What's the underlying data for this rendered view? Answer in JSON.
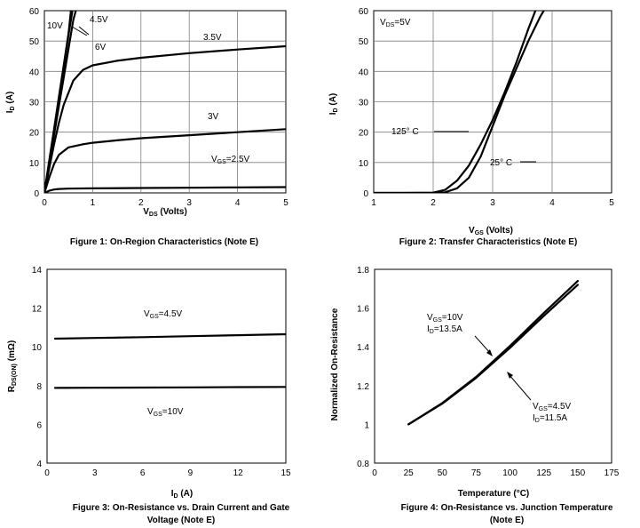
{
  "chart_data": [
    {
      "type": "line",
      "caption": "Figure 1: On-Region Characteristics (Note E)",
      "xlabel_main": "V",
      "xlabel_sub": "DS",
      "xlabel_rest": " (Volts)",
      "ylabel_main": "I",
      "ylabel_sub": "D",
      "ylabel_rest": " (A)",
      "xlim": [
        0,
        5
      ],
      "ylim": [
        0,
        60
      ],
      "xticks": [
        "0",
        "1",
        "2",
        "3",
        "4",
        "5"
      ],
      "yticks": [
        "0",
        "10",
        "20",
        "30",
        "40",
        "50",
        "60"
      ],
      "grid": true,
      "series": [
        {
          "name": "10V",
          "x": [
            0,
            0.1,
            0.2,
            0.3,
            0.4,
            0.5,
            0.55
          ],
          "y": [
            0,
            10.5,
            21,
            31.5,
            42,
            52.5,
            60
          ]
        },
        {
          "name": "4.5V",
          "x": [
            0,
            0.1,
            0.2,
            0.3,
            0.4,
            0.5,
            0.58
          ],
          "y": [
            0,
            10,
            20.5,
            31,
            41.5,
            52,
            60
          ]
        },
        {
          "name": "6V",
          "x": [
            0,
            0.1,
            0.2,
            0.3,
            0.4,
            0.5,
            0.6,
            0.65
          ],
          "y": [
            0,
            9.5,
            19,
            28.5,
            38,
            47.5,
            57,
            60
          ]
        },
        {
          "name": "3.5V",
          "x": [
            0,
            0.1,
            0.2,
            0.3,
            0.4,
            0.6,
            0.8,
            1.0,
            1.5,
            2,
            3,
            4,
            5
          ],
          "y": [
            0,
            8,
            16,
            23,
            29,
            37,
            40.5,
            42,
            43.5,
            44.5,
            46,
            47.2,
            48.3
          ]
        },
        {
          "name": "3V",
          "x": [
            0,
            0.1,
            0.2,
            0.3,
            0.5,
            0.8,
            1,
            1.5,
            2,
            3,
            4,
            5
          ],
          "y": [
            0,
            5,
            9.5,
            12.5,
            15,
            16,
            16.5,
            17.3,
            18,
            19,
            20,
            21
          ]
        },
        {
          "name": "VGS=2.5V",
          "x": [
            0,
            0.1,
            0.2,
            0.3,
            0.5,
            1,
            2,
            3,
            4,
            5
          ],
          "y": [
            0,
            0.7,
            1.1,
            1.3,
            1.4,
            1.5,
            1.6,
            1.7,
            1.8,
            1.9
          ]
        }
      ],
      "annotations": [
        {
          "text": "10V"
        },
        {
          "text": "4.5V"
        },
        {
          "text": "6V"
        },
        {
          "text": "3.5V"
        },
        {
          "text": "3V"
        },
        {
          "main": "V",
          "sub": "GS",
          "rest": "=2.5V"
        }
      ]
    },
    {
      "type": "line",
      "caption": "Figure 2: Transfer Characteristics (Note E)",
      "xlabel_main": "V",
      "xlabel_sub": "GS",
      "xlabel_rest": " (Volts)",
      "ylabel_main": "I",
      "ylabel_sub": "D",
      "ylabel_rest": " (A)",
      "xlim": [
        1,
        5
      ],
      "ylim": [
        0,
        60
      ],
      "xticks": [
        "1",
        "2",
        "3",
        "4",
        "5"
      ],
      "yticks": [
        "0",
        "10",
        "20",
        "30",
        "40",
        "50",
        "60"
      ],
      "grid": true,
      "series": [
        {
          "name": "125° C",
          "x": [
            1,
            1.5,
            2.0,
            2.2,
            2.4,
            2.6,
            2.8,
            3.0,
            3.2,
            3.4,
            3.6,
            3.72
          ],
          "y": [
            0,
            0,
            0.1,
            1,
            4,
            9,
            16,
            24,
            33,
            43,
            54,
            60
          ]
        },
        {
          "name": "25° C",
          "x": [
            1,
            1.5,
            2.0,
            2.2,
            2.4,
            2.6,
            2.8,
            3.0,
            3.2,
            3.4,
            3.6,
            3.8,
            3.86
          ],
          "y": [
            0,
            0,
            0,
            0.2,
            1.5,
            5,
            12,
            22,
            32,
            41,
            50,
            58,
            60
          ]
        }
      ],
      "annotations": [
        {
          "main": "V",
          "sub": "DS",
          "rest": "=5V"
        },
        {
          "text": "125° C"
        },
        {
          "text": "25° C"
        }
      ]
    },
    {
      "type": "line",
      "caption": "Figure 3: On-Resistance vs. Drain Current and Gate",
      "caption2": "Voltage (Note E)",
      "xlabel_main": "I",
      "xlabel_sub": "D",
      "xlabel_rest": " (A)",
      "ylabel_main": "R",
      "ylabel_sub": "DS(ON)",
      "ylabel_rest": " (mΩ)",
      "xlim": [
        0,
        15
      ],
      "ylim": [
        4,
        14
      ],
      "xticks": [
        "0",
        "3",
        "6",
        "9",
        "12",
        "15"
      ],
      "yticks": [
        "4",
        "6",
        "8",
        "10",
        "12",
        "14"
      ],
      "grid": false,
      "series": [
        {
          "name": "VGS=4.5V",
          "x": [
            0.5,
            3,
            6,
            9,
            12,
            15
          ],
          "y": [
            10.42,
            10.46,
            10.5,
            10.55,
            10.6,
            10.65
          ]
        },
        {
          "name": "VGS=10V",
          "x": [
            0.5,
            3,
            6,
            9,
            12,
            15
          ],
          "y": [
            7.88,
            7.89,
            7.9,
            7.91,
            7.92,
            7.93
          ]
        }
      ],
      "annotations": [
        {
          "main": "V",
          "sub": "GS",
          "rest": "=4.5V"
        },
        {
          "main": "V",
          "sub": "GS",
          "rest": "=10V"
        }
      ]
    },
    {
      "type": "line",
      "caption": "Figure 4: On-Resistance vs. Junction Temperature",
      "caption2": "(Note E)",
      "xlabel": "Temperature (°C)",
      "ylabel": "Normalized On-Resistance",
      "xlim": [
        0,
        175
      ],
      "ylim": [
        0.8,
        1.8
      ],
      "xticks": [
        "0",
        "25",
        "50",
        "75",
        "100",
        "125",
        "150",
        "175"
      ],
      "yticks": [
        "0.8",
        "1",
        "1.2",
        "1.4",
        "1.6",
        "1.8"
      ],
      "grid": false,
      "series": [
        {
          "name": "VGS=10V ID=13.5A",
          "x": [
            25,
            50,
            75,
            100,
            125,
            150
          ],
          "y": [
            1.0,
            1.11,
            1.245,
            1.405,
            1.575,
            1.74
          ]
        },
        {
          "name": "VGS=4.5V ID=11.5A",
          "x": [
            25,
            50,
            75,
            100,
            125,
            150
          ],
          "y": [
            1.0,
            1.107,
            1.24,
            1.395,
            1.56,
            1.72
          ]
        }
      ],
      "annotations": [
        {
          "line1_main": "V",
          "line1_sub": "GS",
          "line1_rest": "=10V",
          "line2_main": "I",
          "line2_sub": "D",
          "line2_rest": "=13.5A"
        },
        {
          "line1_main": "V",
          "line1_sub": "GS",
          "line1_rest": "=4.5V",
          "line2_main": "I",
          "line2_sub": "D",
          "line2_rest": "=11.5A"
        }
      ]
    }
  ]
}
